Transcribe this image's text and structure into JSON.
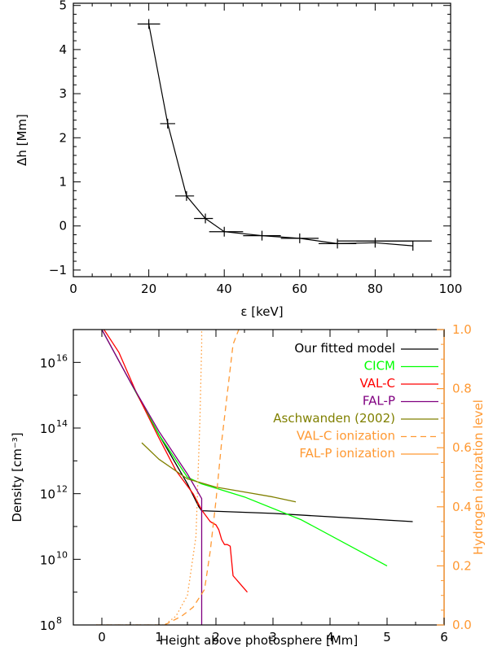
{
  "chart_data": [
    {
      "type": "scatter",
      "title": "",
      "xlabel": "ε [keV]",
      "ylabel": "Δh [Mm]",
      "xlim": [
        0,
        100
      ],
      "ylim": [
        -1.15,
        5.05
      ],
      "xticks": [
        "0",
        "20",
        "40",
        "60",
        "80",
        "100"
      ],
      "yticks": [
        "−1",
        "0",
        "1",
        "2",
        "3",
        "4",
        "5"
      ],
      "xtick_values": [
        0,
        20,
        40,
        60,
        80,
        100
      ],
      "ytick_values": [
        -1,
        0,
        1,
        2,
        3,
        4,
        5
      ],
      "series": [
        {
          "x": [
            20,
            25,
            30,
            35,
            40,
            50,
            60,
            70,
            80,
            90
          ],
          "y": [
            4.58,
            2.32,
            0.68,
            0.17,
            -0.13,
            -0.22,
            -0.28,
            -0.4,
            -0.38,
            -0.45
          ],
          "x_err_lo": [
            17,
            23,
            27,
            32,
            36,
            45,
            55,
            65,
            70,
            75
          ],
          "x_err_hi": [
            23,
            27,
            32,
            37,
            45,
            55,
            65,
            75,
            90,
            95
          ],
          "y_err_display": [
            4.58,
            2.32,
            0.68,
            0.17,
            -0.13,
            -0.22,
            -0.28,
            -0.4,
            -0.34,
            -0.34
          ],
          "color": "#000000"
        }
      ]
    },
    {
      "type": "line",
      "title": "",
      "xlabel": "Height above photosphere [Mm]",
      "ylabel": "Density [cm⁻³]",
      "y2label": "Hydrogen ionization level",
      "xlim": [
        -0.5,
        6
      ],
      "ylim_log10": [
        8,
        17
      ],
      "y2lim": [
        0,
        1
      ],
      "xticks": [
        "0",
        "1",
        "2",
        "3",
        "4",
        "5",
        "6"
      ],
      "xtick_values": [
        0,
        1,
        2,
        3,
        4,
        5,
        6
      ],
      "yticks": [
        "10",
        "10",
        "10",
        "10",
        "10"
      ],
      "ytick_exponents": [
        "8",
        "10",
        "12",
        "14",
        "16"
      ],
      "ytick_values_log10": [
        8,
        10,
        12,
        14,
        16
      ],
      "y2ticks": [
        "0.0",
        "0.2",
        "0.4",
        "0.6",
        "0.8",
        "1.0"
      ],
      "y2tick_values": [
        0,
        0.2,
        0.4,
        0.6,
        0.8,
        1.0
      ],
      "y2color": "#ff9933",
      "legend": {
        "position": "top-right",
        "entries": [
          "Our fitted model",
          "CICM",
          "VAL-C",
          "FAL-P",
          "Aschwanden (2002)",
          "VAL-C ionization",
          "FAL-P ionization"
        ]
      },
      "series": [
        {
          "name": "Our fitted model",
          "color": "#000000",
          "axis": "left",
          "x": [
            0,
            0.5,
            1.0,
            1.5,
            1.7,
            1.75,
            3.0,
            5.45
          ],
          "log10y": [
            17.0,
            15.4,
            13.8,
            12.3,
            11.6,
            11.48,
            11.4,
            11.15
          ]
        },
        {
          "name": "CICM",
          "color": "#00ff00",
          "axis": "left",
          "x": [
            0.5,
            1.0,
            1.5,
            1.75,
            2.5,
            3.5,
            5.0
          ],
          "log10y": [
            15.4,
            13.8,
            12.5,
            12.3,
            11.9,
            11.2,
            9.8
          ]
        },
        {
          "name": "VAL-C",
          "color": "#ff0000",
          "axis": "left",
          "x": [
            0,
            0.3,
            0.6,
            1.0,
            1.3,
            1.6,
            1.75,
            1.9,
            2.0,
            2.05,
            2.1,
            2.15,
            2.2,
            2.25,
            2.3,
            2.35,
            2.4,
            2.55
          ],
          "log10y": [
            17.1,
            16.3,
            15.1,
            13.7,
            12.7,
            12.0,
            11.5,
            11.15,
            11.05,
            10.9,
            10.6,
            10.45,
            10.45,
            10.4,
            9.5,
            9.4,
            9.3,
            9.0
          ]
        },
        {
          "name": "FAL-P",
          "color": "#800080",
          "axis": "left",
          "x": [
            0,
            0.5,
            1.0,
            1.5,
            1.75,
            1.75
          ],
          "log10y": [
            17.0,
            15.4,
            13.9,
            12.6,
            11.85,
            8.0
          ]
        },
        {
          "name": "Aschwanden (2002)",
          "color": "#808000",
          "axis": "left",
          "x": [
            0.7,
            1.0,
            1.5,
            2.0,
            2.5,
            3.0,
            3.4
          ],
          "log10y": [
            13.55,
            13.05,
            12.45,
            12.2,
            12.05,
            11.9,
            11.75
          ]
        },
        {
          "name": "VAL-C ionization",
          "color": "#ff9933",
          "axis": "right",
          "style": "dashed",
          "x": [
            -0.1,
            1.1,
            1.4,
            1.6,
            1.8,
            1.9,
            2.0,
            2.1,
            2.3,
            2.4
          ],
          "y": [
            0.0,
            0.0,
            0.03,
            0.06,
            0.12,
            0.25,
            0.42,
            0.62,
            0.95,
            1.0
          ]
        },
        {
          "name": "FAL-P ionization",
          "color": "#ff9933",
          "axis": "right",
          "style": "dotted",
          "x": [
            -0.1,
            1.1,
            1.3,
            1.5,
            1.65,
            1.72,
            1.75,
            1.75
          ],
          "y": [
            0.0,
            0.0,
            0.03,
            0.1,
            0.3,
            0.7,
            0.95,
            1.0
          ]
        }
      ]
    }
  ]
}
